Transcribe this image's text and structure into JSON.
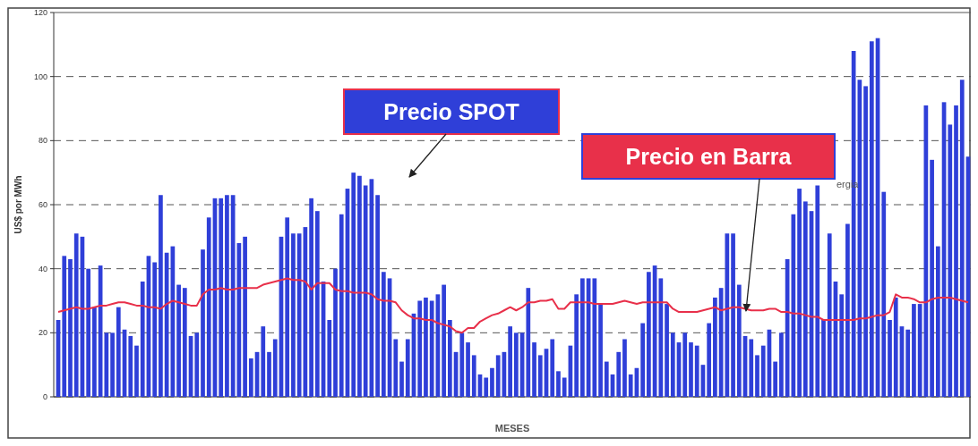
{
  "chart_data": {
    "type": "bar",
    "xlabel": "MESES",
    "ylabel": "US$ por MWh",
    "categories": [
      null,
      null,
      null,
      null,
      null,
      null,
      null,
      null,
      null,
      null,
      null,
      null,
      null,
      null,
      null,
      null,
      null,
      null,
      null,
      null,
      null,
      null,
      null,
      null,
      null,
      null,
      null,
      null,
      null,
      null,
      null,
      null,
      null,
      null,
      null,
      null,
      null,
      null,
      null,
      null,
      null,
      null,
      null,
      null,
      null,
      null,
      null,
      null,
      null,
      null,
      null,
      null,
      null,
      null,
      null,
      null,
      null,
      null,
      null,
      null,
      null,
      null,
      null,
      null,
      null,
      null,
      null,
      null,
      null,
      null,
      null,
      null,
      null,
      null,
      null,
      null,
      null,
      null,
      null,
      null,
      null,
      null,
      null,
      null,
      null,
      null,
      null,
      null,
      null,
      null,
      null,
      null,
      null,
      null,
      null,
      null,
      null,
      null,
      null,
      null,
      null,
      null,
      null,
      null,
      null,
      null,
      null,
      null,
      null,
      null,
      null,
      null,
      null,
      null,
      null,
      null,
      null,
      null,
      null,
      null,
      null,
      null,
      null,
      null,
      null,
      null,
      null,
      null,
      null,
      null,
      null,
      null,
      null,
      null,
      null,
      null,
      null,
      null,
      null,
      null,
      null,
      null,
      null,
      null,
      null,
      null,
      null,
      null,
      null,
      null,
      null,
      null
    ],
    "series": [
      {
        "name": "Precio SPOT",
        "color": "#2f3fd8",
        "values": [
          24,
          44,
          43,
          51,
          50,
          40,
          28,
          41,
          20,
          20,
          28,
          21,
          19,
          16,
          36,
          44,
          42,
          63,
          45,
          47,
          35,
          34,
          19,
          20,
          46,
          56,
          62,
          62,
          63,
          63,
          48,
          50,
          12,
          14,
          22,
          14,
          18,
          50,
          56,
          51,
          51,
          53,
          62,
          58,
          36,
          24,
          40,
          57,
          65,
          70,
          69,
          66,
          68,
          63,
          39,
          37,
          18,
          11,
          18,
          26,
          30,
          31,
          30,
          32,
          35,
          24,
          14,
          20,
          17,
          13,
          7,
          6,
          9,
          13,
          14,
          22,
          20,
          20,
          34,
          17,
          13,
          15,
          18,
          8,
          6,
          16,
          32,
          37,
          37,
          37,
          29,
          11,
          7,
          14,
          18,
          7,
          9,
          23,
          39,
          41,
          37,
          29,
          20,
          17,
          20,
          17,
          16,
          10,
          23,
          31,
          34,
          51,
          51,
          35,
          19,
          18,
          13,
          16,
          21,
          11,
          20,
          43,
          57,
          65,
          61,
          58,
          66,
          24,
          51,
          36,
          32,
          54,
          108,
          99,
          97,
          111,
          112,
          64,
          24,
          31,
          22,
          21,
          29,
          29,
          91,
          74,
          47,
          92,
          85,
          91,
          99,
          75
        ]
      },
      {
        "name": "Precio en Barra",
        "type": "line",
        "color": "#e8304a",
        "values": [
          26.5,
          27,
          27.5,
          28,
          27.5,
          27.5,
          28,
          28.5,
          28.5,
          29,
          29.5,
          29.5,
          29,
          28.5,
          28.5,
          28,
          28,
          27.5,
          29,
          30,
          29.5,
          29,
          28.5,
          28.5,
          32,
          33.5,
          33.5,
          34,
          33.5,
          33.5,
          34,
          34,
          34,
          34,
          35,
          35.5,
          36,
          36.5,
          37,
          36.5,
          36.5,
          36,
          33.5,
          35.5,
          35.5,
          35.5,
          33.5,
          33,
          33,
          32.5,
          32.5,
          32.5,
          32,
          30.5,
          30,
          30,
          29.5,
          27,
          25.5,
          24.5,
          24.5,
          24,
          24,
          23,
          22.5,
          22,
          20.5,
          20,
          21.5,
          21.5,
          23.5,
          24.5,
          25.5,
          26,
          27,
          28,
          27,
          28,
          29.5,
          29.5,
          30,
          30,
          30.5,
          27.5,
          27.5,
          29.5,
          29.5,
          29.5,
          29.5,
          29,
          29,
          29,
          29,
          29.5,
          30,
          29.5,
          29,
          29.5,
          29.5,
          29.5,
          29.5,
          29.5,
          27.5,
          26.5,
          26.5,
          26.5,
          26.5,
          27,
          27.5,
          28,
          27,
          27.5,
          28,
          28,
          27.5,
          27,
          27,
          27,
          27.5,
          27.5,
          26.5,
          26.5,
          26,
          26,
          25.5,
          25,
          25,
          24,
          24,
          24,
          24,
          24,
          24,
          24.5,
          24.5,
          25,
          25.5,
          25.5,
          26.5,
          32,
          31,
          31,
          30.5,
          29.5,
          29.5,
          30.5,
          31,
          31,
          31,
          30.5,
          30,
          29.5
        ]
      }
    ],
    "ylim": [
      0,
      120
    ],
    "yticks": [
      0,
      20,
      40,
      60,
      80,
      100,
      120
    ],
    "grid": "y",
    "line_style": "solid",
    "annotations": [
      "ergia"
    ]
  }
}
